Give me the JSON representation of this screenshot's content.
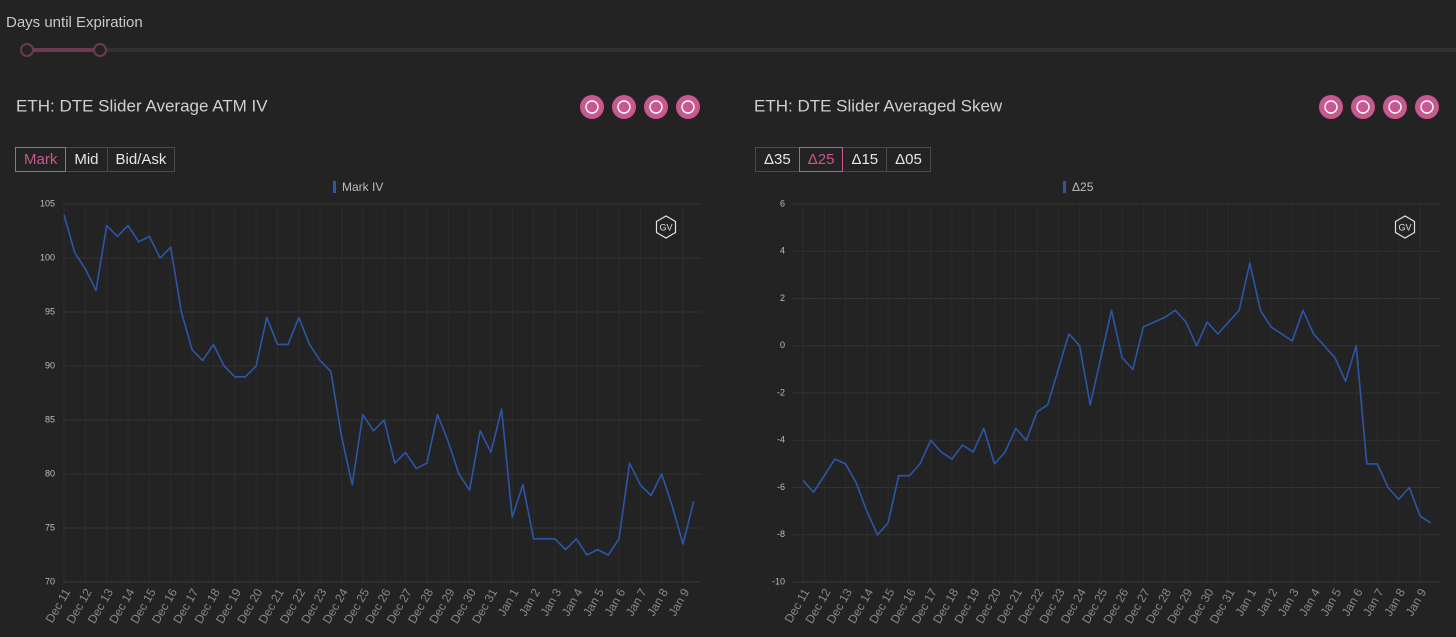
{
  "filter": {
    "label": "Days until Expiration"
  },
  "chart_data": [
    {
      "type": "line",
      "title": "ETH: DTE Slider Average ATM IV",
      "buttons": [
        "Mark",
        "Mid",
        "Bid/Ask"
      ],
      "selected_button": 0,
      "watermark": "GV",
      "categories": [
        "Dec 11",
        null,
        "Dec 12",
        null,
        "Dec 13",
        null,
        "Dec 14",
        null,
        "Dec 15",
        null,
        "Dec 16",
        null,
        "Dec 17",
        null,
        "Dec 18",
        null,
        "Dec 19",
        null,
        "Dec 20",
        null,
        "Dec 21",
        null,
        "Dec 22",
        null,
        "Dec 23",
        null,
        "Dec 24",
        null,
        "Dec 25",
        null,
        "Dec 26",
        null,
        "Dec 27",
        null,
        "Dec 28",
        null,
        "Dec 29",
        null,
        "Dec 30",
        null,
        "Dec 31",
        null,
        "Jan 1",
        null,
        "Jan 2",
        null,
        "Jan 3",
        null,
        "Jan 4",
        null,
        "Jan 5",
        null,
        "Jan 6",
        null,
        "Jan 7",
        null,
        "Jan 8",
        null,
        "Jan 9",
        null
      ],
      "series": [
        {
          "name": "Mark IV",
          "color": "#2d55a8",
          "values": [
            104,
            100.5,
            99,
            97,
            103,
            102,
            103,
            101.5,
            102,
            100,
            101,
            95,
            91.5,
            90.5,
            92,
            90,
            89,
            89,
            90,
            94.5,
            92,
            92,
            94.5,
            92,
            90.5,
            89.5,
            83.5,
            79,
            85.5,
            84,
            85,
            81,
            82,
            80.5,
            81,
            85.5,
            83,
            80,
            78.5,
            84,
            82,
            86,
            76,
            79,
            74,
            74,
            74,
            73,
            74,
            72.5,
            73,
            72.5,
            74,
            81,
            79,
            78,
            80,
            77,
            73.5,
            77.5
          ]
        }
      ],
      "ylim": [
        70,
        105
      ],
      "yticks": [
        70,
        75,
        80,
        85,
        90,
        95,
        100,
        105
      ],
      "grid": true
    },
    {
      "type": "line",
      "title": "ETH: DTE Slider Averaged Skew",
      "buttons": [
        "Δ35",
        "Δ25",
        "Δ15",
        "Δ05"
      ],
      "selected_button": 1,
      "watermark": "GV",
      "categories": [
        "Dec 11",
        null,
        "Dec 12",
        null,
        "Dec 13",
        null,
        "Dec 14",
        null,
        "Dec 15",
        null,
        "Dec 16",
        null,
        "Dec 17",
        null,
        "Dec 18",
        null,
        "Dec 19",
        null,
        "Dec 20",
        null,
        "Dec 21",
        null,
        "Dec 22",
        null,
        "Dec 23",
        null,
        "Dec 24",
        null,
        "Dec 25",
        null,
        "Dec 26",
        null,
        "Dec 27",
        null,
        "Dec 28",
        null,
        "Dec 29",
        null,
        "Dec 30",
        null,
        "Dec 31",
        null,
        "Jan 1",
        null,
        "Jan 2",
        null,
        "Jan 3",
        null,
        "Jan 4",
        null,
        "Jan 5",
        null,
        "Jan 6",
        null,
        "Jan 7",
        null,
        "Jan 8",
        null,
        "Jan 9",
        null
      ],
      "series": [
        {
          "name": "Δ25",
          "color": "#2d55a8",
          "values": [
            -5.7,
            -6.2,
            -5.5,
            -4.8,
            -5,
            -5.8,
            -7,
            -8,
            -7.5,
            -5.5,
            -5.5,
            -5,
            -4,
            -4.5,
            -4.8,
            -4.2,
            -4.5,
            -3.5,
            -5,
            -4.5,
            -3.5,
            -4,
            -2.8,
            -2.5,
            -1,
            0.5,
            0,
            -2.5,
            -0.5,
            1.5,
            -0.5,
            -1,
            0.8,
            1,
            1.2,
            1.5,
            1,
            0,
            1,
            0.5,
            1,
            1.5,
            3.5,
            1.5,
            0.8,
            0.5,
            0.2,
            1.5,
            0.5,
            0,
            -0.5,
            -1.5,
            0,
            -5,
            -5,
            -6,
            -6.5,
            -6,
            -7.2,
            -7.5
          ]
        }
      ],
      "ylim": [
        -10,
        6
      ],
      "yticks": [
        -10,
        -8,
        -6,
        -4,
        -2,
        0,
        2,
        4,
        6
      ],
      "grid": true
    }
  ]
}
